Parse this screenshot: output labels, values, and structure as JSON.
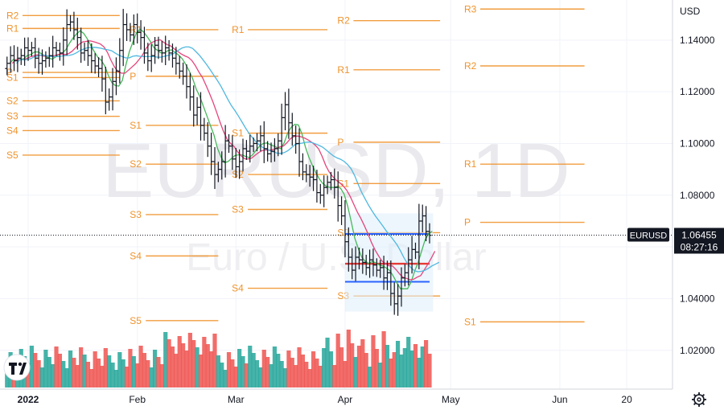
{
  "chart_data": {
    "type": "candlestick",
    "symbol": "EURUSD",
    "timeframe": "1D",
    "watermark_title": "EURUSD, 1D",
    "watermark_subtitle": "Euro / U.S. Dollar",
    "currency": "USD",
    "current_price": "1.06455",
    "countdown": "08:27:16",
    "ylim": [
      1.005,
      1.1555
    ],
    "y_ticks": [
      "1.14000",
      "1.12000",
      "1.10000",
      "1.08000",
      "1.06000",
      "1.04000",
      "1.02000"
    ],
    "x_ticks": [
      {
        "label": "2022",
        "day": 0,
        "bold": true
      },
      {
        "label": "Feb",
        "day": 31
      },
      {
        "label": "Mar",
        "day": 59
      },
      {
        "label": "Apr",
        "day": 90
      },
      {
        "label": "May",
        "day": 120
      },
      {
        "label": "Jun",
        "day": 151
      },
      {
        "label": "20",
        "day": 170
      }
    ],
    "x_range_days": [
      -8,
      183
    ],
    "series_daily_close": [
      [
        -6,
        1.131
      ],
      [
        -5,
        1.134
      ],
      [
        -4,
        1.132
      ],
      [
        -3,
        1.133
      ],
      [
        -2,
        1.134
      ],
      [
        -1,
        1.137
      ],
      [
        0,
        1.136
      ],
      [
        1,
        1.137
      ],
      [
        2,
        1.133
      ],
      [
        3,
        1.131
      ],
      [
        4,
        1.132
      ],
      [
        5,
        1.133
      ],
      [
        6,
        1.134
      ],
      [
        7,
        1.137
      ],
      [
        8,
        1.136
      ],
      [
        9,
        1.135
      ],
      [
        10,
        1.14
      ],
      [
        11,
        1.146
      ],
      [
        12,
        1.147
      ],
      [
        13,
        1.144
      ],
      [
        14,
        1.141
      ],
      [
        15,
        1.135
      ],
      [
        16,
        1.136
      ],
      [
        17,
        1.134
      ],
      [
        18,
        1.132
      ],
      [
        19,
        1.13
      ],
      [
        20,
        1.129
      ],
      [
        21,
        1.125
      ],
      [
        22,
        1.116
      ],
      [
        23,
        1.118
      ],
      [
        24,
        1.124
      ],
      [
        25,
        1.128
      ],
      [
        26,
        1.136
      ],
      [
        27,
        1.146
      ],
      [
        28,
        1.144
      ],
      [
        29,
        1.142
      ],
      [
        30,
        1.146
      ],
      [
        31,
        1.143
      ],
      [
        32,
        1.141
      ],
      [
        33,
        1.135
      ],
      [
        34,
        1.132
      ],
      [
        35,
        1.134
      ],
      [
        36,
        1.138
      ],
      [
        37,
        1.136
      ],
      [
        38,
        1.135
      ],
      [
        39,
        1.137
      ],
      [
        40,
        1.135
      ],
      [
        41,
        1.133
      ],
      [
        42,
        1.131
      ],
      [
        43,
        1.128
      ],
      [
        44,
        1.126
      ],
      [
        45,
        1.122
      ],
      [
        46,
        1.118
      ],
      [
        47,
        1.111
      ],
      [
        48,
        1.114
      ],
      [
        49,
        1.107
      ],
      [
        50,
        1.104
      ],
      [
        51,
        1.099
      ],
      [
        52,
        1.093
      ],
      [
        53,
        1.088
      ],
      [
        54,
        1.09
      ],
      [
        55,
        1.093
      ],
      [
        56,
        1.101
      ],
      [
        57,
        1.099
      ],
      [
        58,
        1.094
      ],
      [
        59,
        1.091
      ],
      [
        60,
        1.093
      ],
      [
        61,
        1.098
      ],
      [
        62,
        1.097
      ],
      [
        63,
        1.099
      ],
      [
        64,
        1.1
      ],
      [
        65,
        1.101
      ],
      [
        66,
        1.103
      ],
      [
        67,
        1.098
      ],
      [
        68,
        1.096
      ],
      [
        69,
        1.097
      ],
      [
        70,
        1.098
      ],
      [
        71,
        1.101
      ],
      [
        72,
        1.11
      ],
      [
        73,
        1.115
      ],
      [
        74,
        1.108
      ],
      [
        75,
        1.103
      ],
      [
        76,
        1.1
      ],
      [
        77,
        1.093
      ],
      [
        78,
        1.089
      ],
      [
        79,
        1.088
      ],
      [
        80,
        1.087
      ],
      [
        81,
        1.086
      ],
      [
        82,
        1.081
      ],
      [
        83,
        1.08
      ],
      [
        84,
        1.083
      ],
      [
        85,
        1.085
      ],
      [
        86,
        1.086
      ],
      [
        87,
        1.083
      ],
      [
        88,
        1.076
      ],
      [
        89,
        1.072
      ],
      [
        90,
        1.062
      ],
      [
        91,
        1.056
      ],
      [
        92,
        1.051
      ],
      [
        93,
        1.056
      ],
      [
        94,
        1.055
      ],
      [
        95,
        1.054
      ],
      [
        96,
        1.052
      ],
      [
        97,
        1.055
      ],
      [
        98,
        1.053
      ],
      [
        99,
        1.051
      ],
      [
        100,
        1.052
      ],
      [
        101,
        1.048
      ],
      [
        102,
        1.05
      ],
      [
        103,
        1.042
      ],
      [
        104,
        1.038
      ],
      [
        105,
        1.041
      ],
      [
        106,
        1.048
      ],
      [
        107,
        1.05
      ],
      [
        108,
        1.055
      ],
      [
        109,
        1.059
      ],
      [
        110,
        1.058
      ],
      [
        111,
        1.07
      ],
      [
        112,
        1.072
      ],
      [
        113,
        1.066
      ],
      [
        114,
        1.0645
      ]
    ],
    "indicator_colors": {
      "fast_ma": "#46b85a",
      "mid_ma": "#e5457c",
      "slow_ma": "#4fb8e0",
      "pivot": "#f0932b",
      "volume_up": "#26a69a",
      "volume_down": "#ef5350",
      "price_bar": "#131722"
    },
    "pivot_levels": [
      {
        "period": "2021-12",
        "labels": [
          [
            "R3",
            1.1545
          ],
          [
            "R2",
            1.1495
          ],
          [
            "R1",
            1.1445
          ],
          [
            "P",
            1.1275
          ],
          [
            "S1",
            1.1255
          ],
          [
            "S2",
            1.1165
          ],
          [
            "S3",
            1.1105
          ],
          [
            "S4",
            1.105
          ],
          [
            "S5",
            1.0955
          ]
        ]
      },
      {
        "period": "2022-01",
        "labels": [
          [
            "R1",
            1.144
          ],
          [
            "P",
            1.126
          ],
          [
            "S1",
            1.107
          ],
          [
            "S2",
            1.092
          ],
          [
            "S3",
            1.0725
          ],
          [
            "S4",
            1.0565
          ],
          [
            "S5",
            1.0315
          ]
        ]
      },
      {
        "period": "2022-02",
        "labels": [
          [
            "R1",
            1.144
          ],
          [
            "S1",
            1.104
          ],
          [
            "S2",
            1.088
          ],
          [
            "S3",
            1.0745
          ],
          [
            "S4",
            1.044
          ]
        ]
      },
      {
        "period": "2022-03",
        "labels": [
          [
            "R2",
            1.1475
          ],
          [
            "R1",
            1.1285
          ],
          [
            "P",
            1.1005
          ],
          [
            "S1",
            1.0845
          ],
          [
            "S2",
            1.0655
          ],
          [
            "S3",
            1.041
          ]
        ]
      },
      {
        "period": "2022-04",
        "labels": [
          [
            "R3",
            1.152
          ],
          [
            "R2",
            1.13
          ],
          [
            "R1",
            1.092
          ],
          [
            "P",
            1.0695
          ],
          [
            "S1",
            1.031
          ]
        ]
      }
    ],
    "volume_profile": {
      "vah": 1.065,
      "val": 1.0465,
      "poc": 1.0535
    },
    "grid": true,
    "legend": "none"
  },
  "axis": {
    "currency_label": "USD",
    "price_tag": "1.06455",
    "countdown": "08:27:16",
    "symbol_tag": "EURUSD"
  },
  "icons": {
    "logo": "tradingview-logo",
    "settings": "gear-icon"
  }
}
